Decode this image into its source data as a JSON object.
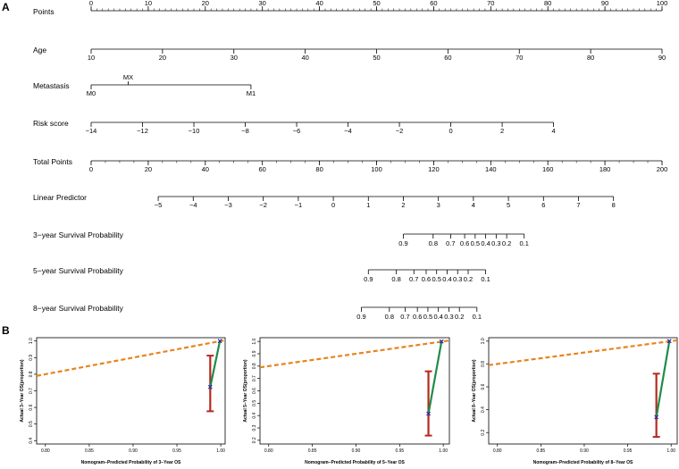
{
  "panels": {
    "a": "A",
    "b": "B"
  },
  "chart_data": [
    {
      "type": "nomogram",
      "rows": [
        {
          "name": "Points",
          "kind": "scale",
          "ticks": [
            0,
            10,
            20,
            30,
            40,
            50,
            60,
            70,
            80,
            90,
            100
          ],
          "labels": [
            "0",
            "10",
            "20",
            "30",
            "40",
            "50",
            "60",
            "70",
            "80",
            "90",
            "100"
          ],
          "minor_step": 1,
          "range": [
            0,
            100
          ],
          "label_side": "above"
        },
        {
          "name": "Age",
          "kind": "scale",
          "ticks": [
            10,
            20,
            30,
            40,
            50,
            60,
            70,
            80,
            90
          ],
          "labels": [
            "10",
            "20",
            "30",
            "40",
            "50",
            "60",
            "70",
            "80",
            "90"
          ],
          "range": [
            10,
            90
          ],
          "points_at_range": [
            0,
            100
          ],
          "label_side": "below"
        },
        {
          "name": "Metastasis",
          "kind": "categorical",
          "categories": [
            {
              "label": "M0",
              "points": 0,
              "label_side": "below"
            },
            {
              "label": "MX",
              "points": 6.5,
              "label_side": "above"
            },
            {
              "label": "M1",
              "points": 28
            }
          ]
        },
        {
          "name": "Risk score",
          "kind": "scale",
          "ticks": [
            -14,
            -12,
            -10,
            -8,
            -6,
            -4,
            -2,
            0,
            2,
            4
          ],
          "labels": [
            "−14",
            "−12",
            "−10",
            "−8",
            "−6",
            "−4",
            "−2",
            "0",
            "2",
            "4"
          ],
          "range": [
            -14,
            4
          ],
          "points_at_range": [
            0,
            81
          ],
          "label_side": "below"
        },
        {
          "name": "Total Points",
          "kind": "scale",
          "ticks": [
            0,
            20,
            40,
            60,
            80,
            100,
            120,
            140,
            160,
            180,
            200
          ],
          "labels": [
            "0",
            "20",
            "40",
            "60",
            "80",
            "100",
            "120",
            "140",
            "160",
            "180",
            "200"
          ],
          "minor_step": 5,
          "range": [
            0,
            200
          ],
          "label_side": "below"
        },
        {
          "name": "Linear Predictor",
          "kind": "scale",
          "ticks": [
            -5,
            -4,
            -3,
            -2,
            -1,
            0,
            1,
            2,
            3,
            4,
            5,
            6,
            7,
            8
          ],
          "labels": [
            "−5",
            "−4",
            "−3",
            "−2",
            "−1",
            "0",
            "1",
            "2",
            "3",
            "4",
            "5",
            "6",
            "7",
            "8"
          ],
          "range": [
            -5,
            8
          ],
          "total_points_at_range": [
            23.5,
            183
          ],
          "label_side": "below"
        },
        {
          "name": "3−year Survival Probability",
          "kind": "probability",
          "ticks": [
            0.9,
            0.8,
            0.7,
            0.6,
            0.5,
            0.4,
            0.3,
            0.2,
            0.1
          ],
          "labels": [
            "0.9",
            "0.8",
            "0.7",
            "0.6",
            "0.5",
            "0.4",
            "0.3",
            "0.2",
            "0.1"
          ],
          "linear_predictor_at_ticks": [
            2.0,
            2.85,
            3.35,
            3.75,
            4.05,
            4.35,
            4.65,
            4.95,
            5.45
          ]
        },
        {
          "name": "5−year Survival Probability",
          "kind": "probability",
          "ticks": [
            0.9,
            0.8,
            0.7,
            0.6,
            0.5,
            0.4,
            0.3,
            0.2,
            0.1
          ],
          "labels": [
            "0.9",
            "0.8",
            "0.7",
            "0.6",
            "0.5",
            "0.4",
            "0.3",
            "0.2",
            "0.1"
          ],
          "linear_predictor_at_ticks": [
            1.0,
            1.8,
            2.3,
            2.65,
            2.95,
            3.25,
            3.55,
            3.85,
            4.35
          ]
        },
        {
          "name": "8−year Survival Probability",
          "kind": "probability",
          "ticks": [
            0.9,
            0.8,
            0.7,
            0.6,
            0.5,
            0.4,
            0.3,
            0.2,
            0.1
          ],
          "labels": [
            "0.9",
            "0.8",
            "0.7",
            "0.6",
            "0.5",
            "0.4",
            "0.3",
            "0.2",
            "0.1"
          ],
          "linear_predictor_at_ticks": [
            0.8,
            1.6,
            2.05,
            2.4,
            2.7,
            3.0,
            3.3,
            3.6,
            4.1
          ]
        }
      ]
    },
    {
      "type": "line",
      "xlabel": "Nomogram−Predicted Probability of 3−Year OS",
      "ylabel": "Actual 3−Year OS(proportion)",
      "xlim": [
        0.79,
        1.005
      ],
      "ylim": [
        0.38,
        1.02
      ],
      "xticks": [
        0.8,
        0.85,
        0.9,
        0.95,
        1.0
      ],
      "xtick_labels": [
        "0.80",
        "0.85",
        "0.90",
        "0.95",
        "1.00"
      ],
      "yticks": [
        0.4,
        0.5,
        0.6,
        0.7,
        0.8,
        0.9,
        1.0
      ],
      "ytick_labels": [
        "0.4",
        "0.5",
        "0.6",
        "0.7",
        "0.8",
        "0.9",
        "1.0"
      ],
      "reference_line": [
        [
          0.79,
          0.79
        ],
        [
          1.005,
          1.005
        ]
      ],
      "calibration_points": [
        [
          0.988,
          0.723
        ],
        [
          0.999,
          1.0
        ]
      ],
      "error_bars": [
        {
          "x": 0.988,
          "low": 0.577,
          "high": 0.912
        }
      ]
    },
    {
      "type": "line",
      "xlabel": "Nomogram−Predicted Probability of 5−Year OS",
      "ylabel": "Actual 5−Year OS(proportion)",
      "xlim": [
        0.79,
        1.007
      ],
      "ylim": [
        0.17,
        1.03
      ],
      "xticks": [
        0.8,
        0.85,
        0.9,
        0.95,
        1.0
      ],
      "xtick_labels": [
        "0.80",
        "0.85",
        "0.90",
        "0.95",
        "1.00"
      ],
      "yticks": [
        0.2,
        0.3,
        0.4,
        0.5,
        0.6,
        0.7,
        0.8,
        0.9,
        1.0
      ],
      "ytick_labels": [
        "0.2",
        "0.3",
        "0.4",
        "0.5",
        "0.6",
        "0.7",
        "0.8",
        "0.9",
        "1.0"
      ],
      "reference_line": [
        [
          0.79,
          0.79
        ],
        [
          1.007,
          1.007
        ]
      ],
      "calibration_points": [
        [
          0.983,
          0.415
        ],
        [
          0.998,
          1.0
        ]
      ],
      "error_bars": [
        {
          "x": 0.983,
          "low": 0.238,
          "high": 0.758
        }
      ]
    },
    {
      "type": "line",
      "xlabel": "Nomogram−Predicted Probability of 8−Year OS",
      "ylabel": "Actual 8−Year OS(proportion)",
      "xlim": [
        0.79,
        1.007
      ],
      "ylim": [
        0.1,
        1.03
      ],
      "xticks": [
        0.8,
        0.85,
        0.9,
        0.95,
        1.0
      ],
      "xtick_labels": [
        "0.80",
        "0.85",
        "0.90",
        "0.95",
        "1.00"
      ],
      "yticks": [
        0.2,
        0.4,
        0.6,
        0.8,
        1.0
      ],
      "ytick_labels": [
        "0.2",
        "0.4",
        "0.6",
        "0.8",
        "1.0"
      ],
      "reference_line": [
        [
          0.79,
          0.79
        ],
        [
          1.007,
          1.007
        ]
      ],
      "calibration_points": [
        [
          0.983,
          0.335
        ],
        [
          0.998,
          1.0
        ]
      ],
      "error_bars": [
        {
          "x": 0.983,
          "low": 0.162,
          "high": 0.715
        }
      ]
    }
  ],
  "colors": {
    "axis": "#000000",
    "reference": "#E8831E",
    "calibration_line": "#1E8C4A",
    "calibration_point": "#2828A8",
    "error_bar": "#B52A1E"
  }
}
